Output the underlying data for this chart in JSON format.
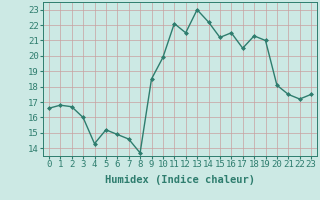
{
  "x": [
    0,
    1,
    2,
    3,
    4,
    5,
    6,
    7,
    8,
    9,
    10,
    11,
    12,
    13,
    14,
    15,
    16,
    17,
    18,
    19,
    20,
    21,
    22,
    23
  ],
  "y": [
    16.6,
    16.8,
    16.7,
    16.0,
    14.3,
    15.2,
    14.9,
    14.6,
    13.7,
    18.5,
    19.9,
    22.1,
    21.5,
    23.0,
    22.2,
    21.2,
    21.5,
    20.5,
    21.3,
    21.0,
    18.1,
    17.5,
    17.2,
    17.5
  ],
  "line_color": "#2e7d6e",
  "marker": "D",
  "marker_size": 2.0,
  "line_width": 1.0,
  "xlabel": "Humidex (Indice chaleur)",
  "xlabel_fontsize": 7.5,
  "ylim": [
    13.5,
    23.5
  ],
  "xlim": [
    -0.5,
    23.5
  ],
  "yticks": [
    14,
    15,
    16,
    17,
    18,
    19,
    20,
    21,
    22,
    23
  ],
  "xticks": [
    0,
    1,
    2,
    3,
    4,
    5,
    6,
    7,
    8,
    9,
    10,
    11,
    12,
    13,
    14,
    15,
    16,
    17,
    18,
    19,
    20,
    21,
    22,
    23
  ],
  "xtick_labels": [
    "0",
    "1",
    "2",
    "3",
    "4",
    "5",
    "6",
    "7",
    "8",
    "9",
    "10",
    "11",
    "12",
    "13",
    "14",
    "15",
    "16",
    "17",
    "18",
    "19",
    "20",
    "21",
    "22",
    "23"
  ],
  "grid_color": "#c8a0a0",
  "bg_color": "#cce9e4",
  "tick_fontsize": 6.5,
  "ylabel_color": "#2e7d6e",
  "axis_color": "#2e7d6e"
}
